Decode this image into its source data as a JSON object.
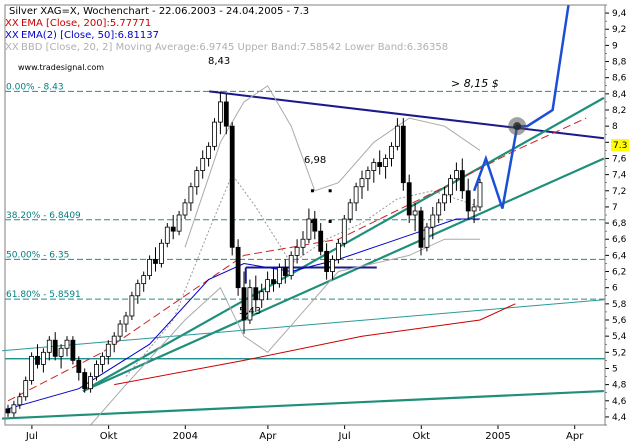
{
  "chart_data": {
    "type": "candlestick",
    "legend": {
      "title": "Silver XAG=X, Wochenchart - 22.06.2003 - 24.04.2005 - 7.3",
      "ema200": "EMA [Close, 200]:5.77771",
      "ema50": "EMA(2) [Close, 50]:6.81137",
      "bbd": "BBD [Close, 20, 2] Moving Average:6.9745 Upper Band:7.58542 Lower Band:6.36358",
      "source": "www.tradesignal.com",
      "xx": "XX"
    },
    "last_value": "7.3",
    "y_axis": {
      "min": 4.3,
      "max": 9.5,
      "ticks": [
        "4,4",
        "4,6",
        "4,8",
        "5",
        "5,2",
        "5,4",
        "5,6",
        "5,8",
        "6",
        "6,2",
        "6,4",
        "6,6",
        "6,8",
        "7",
        "7,2",
        "7,4",
        "7,6",
        "7,8",
        "8",
        "8,2",
        "8,4",
        "8,6",
        "8,8",
        "9",
        "9,2",
        "9,4"
      ]
    },
    "x_axis": {
      "labels": [
        "Jul",
        "Okt",
        "2004",
        "Apr",
        "Jul",
        "Okt",
        "2005",
        "Apr"
      ],
      "label_weeks": [
        1,
        14,
        27,
        41,
        54,
        67,
        80,
        93
      ]
    },
    "fib_levels": [
      {
        "label": "0.00% - 8.43",
        "value": 8.43
      },
      {
        "label": "38.20% - 6.8409",
        "value": 6.8409
      },
      {
        "label": "50.00% - 6.35",
        "value": 6.35
      },
      {
        "label": "61.80% - 5.8591",
        "value": 5.8591
      }
    ],
    "annotations": {
      "peak": "8,43",
      "low": "5,43",
      "mid": "6,98",
      "target": "> 8,15 $"
    },
    "candles": [
      [
        4.5,
        4.55,
        4.4,
        4.45
      ],
      [
        4.45,
        4.6,
        4.4,
        4.55
      ],
      [
        4.55,
        4.7,
        4.5,
        4.65
      ],
      [
        4.65,
        4.9,
        4.6,
        4.85
      ],
      [
        4.85,
        5.2,
        4.8,
        5.15
      ],
      [
        5.15,
        5.3,
        5.0,
        5.05
      ],
      [
        5.05,
        5.25,
        4.95,
        5.2
      ],
      [
        5.2,
        5.4,
        5.1,
        5.35
      ],
      [
        5.35,
        5.45,
        5.1,
        5.15
      ],
      [
        5.15,
        5.3,
        5.0,
        5.25
      ],
      [
        5.25,
        5.4,
        5.15,
        5.35
      ],
      [
        5.35,
        5.4,
        5.05,
        5.1
      ],
      [
        5.1,
        5.15,
        4.85,
        4.95
      ],
      [
        4.95,
        5.0,
        4.7,
        4.75
      ],
      [
        4.75,
        4.95,
        4.7,
        4.9
      ],
      [
        4.9,
        5.1,
        4.85,
        5.05
      ],
      [
        5.05,
        5.2,
        4.95,
        5.15
      ],
      [
        5.15,
        5.35,
        5.05,
        5.3
      ],
      [
        5.3,
        5.45,
        5.2,
        5.4
      ],
      [
        5.4,
        5.6,
        5.35,
        5.55
      ],
      [
        5.55,
        5.7,
        5.45,
        5.65
      ],
      [
        5.65,
        5.95,
        5.6,
        5.9
      ],
      [
        5.9,
        6.1,
        5.8,
        6.05
      ],
      [
        6.05,
        6.2,
        5.95,
        6.15
      ],
      [
        6.15,
        6.4,
        6.1,
        6.35
      ],
      [
        6.35,
        6.5,
        6.2,
        6.3
      ],
      [
        6.3,
        6.6,
        6.25,
        6.55
      ],
      [
        6.55,
        6.8,
        6.5,
        6.75
      ],
      [
        6.75,
        6.9,
        6.6,
        6.7
      ],
      [
        6.7,
        6.95,
        6.65,
        6.9
      ],
      [
        6.9,
        7.1,
        6.85,
        7.05
      ],
      [
        7.05,
        7.3,
        6.95,
        7.25
      ],
      [
        7.25,
        7.5,
        7.15,
        7.45
      ],
      [
        7.45,
        7.7,
        7.35,
        7.6
      ],
      [
        7.6,
        7.8,
        7.5,
        7.75
      ],
      [
        7.75,
        8.1,
        7.7,
        8.05
      ],
      [
        8.05,
        8.43,
        7.9,
        8.3
      ],
      [
        8.3,
        8.4,
        7.9,
        8.0
      ],
      [
        8.0,
        8.05,
        6.4,
        6.5
      ],
      [
        6.5,
        6.6,
        5.9,
        6.0
      ],
      [
        6.0,
        6.2,
        5.43,
        5.6
      ],
      [
        5.6,
        6.1,
        5.55,
        6.0
      ],
      [
        6.0,
        6.15,
        5.7,
        5.85
      ],
      [
        5.85,
        6.05,
        5.75,
        5.95
      ],
      [
        5.95,
        6.2,
        5.85,
        6.1
      ],
      [
        6.1,
        6.25,
        5.95,
        6.05
      ],
      [
        6.05,
        6.3,
        6.0,
        6.25
      ],
      [
        6.25,
        6.35,
        6.05,
        6.15
      ],
      [
        6.15,
        6.45,
        6.1,
        6.4
      ],
      [
        6.4,
        6.6,
        6.3,
        6.5
      ],
      [
        6.5,
        6.7,
        6.4,
        6.6
      ],
      [
        6.6,
        6.98,
        6.55,
        6.85
      ],
      [
        6.85,
        6.95,
        6.6,
        6.7
      ],
      [
        6.7,
        6.8,
        6.4,
        6.45
      ],
      [
        6.45,
        6.55,
        6.1,
        6.2
      ],
      [
        6.2,
        6.4,
        6.1,
        6.35
      ],
      [
        6.35,
        6.6,
        6.3,
        6.55
      ],
      [
        6.55,
        6.9,
        6.5,
        6.85
      ],
      [
        6.85,
        7.1,
        6.8,
        7.05
      ],
      [
        7.05,
        7.3,
        6.95,
        7.25
      ],
      [
        7.25,
        7.45,
        7.1,
        7.35
      ],
      [
        7.35,
        7.5,
        7.2,
        7.45
      ],
      [
        7.45,
        7.6,
        7.3,
        7.55
      ],
      [
        7.55,
        7.7,
        7.4,
        7.5
      ],
      [
        7.5,
        7.65,
        7.35,
        7.6
      ],
      [
        7.6,
        7.8,
        7.5,
        7.75
      ],
      [
        7.75,
        8.1,
        7.7,
        8.0
      ],
      [
        8.0,
        8.1,
        7.2,
        7.3
      ],
      [
        7.3,
        7.4,
        6.8,
        6.9
      ],
      [
        6.9,
        7.05,
        6.7,
        6.95
      ],
      [
        6.95,
        7.0,
        6.4,
        6.5
      ],
      [
        6.5,
        6.8,
        6.45,
        6.75
      ],
      [
        6.75,
        7.0,
        6.6,
        6.9
      ],
      [
        6.9,
        7.1,
        6.8,
        7.05
      ],
      [
        7.05,
        7.25,
        6.95,
        7.15
      ],
      [
        7.15,
        7.4,
        7.05,
        7.35
      ],
      [
        7.35,
        7.55,
        7.2,
        7.45
      ],
      [
        7.45,
        7.6,
        7.1,
        7.2
      ],
      [
        7.2,
        7.35,
        6.85,
        6.95
      ],
      [
        6.95,
        7.1,
        6.8,
        7.0
      ],
      [
        7.0,
        7.35,
        6.95,
        7.3
      ]
    ],
    "ema200_points": [
      [
        18,
        4.8
      ],
      [
        40,
        5.1
      ],
      [
        60,
        5.4
      ],
      [
        80,
        5.6
      ],
      [
        86,
        5.8
      ]
    ],
    "ema50_points": [
      [
        0,
        4.5
      ],
      [
        12,
        4.75
      ],
      [
        24,
        5.3
      ],
      [
        34,
        6.1
      ],
      [
        40,
        6.3
      ],
      [
        48,
        6.2
      ],
      [
        56,
        6.35
      ],
      [
        64,
        6.55
      ],
      [
        70,
        6.7
      ],
      [
        76,
        6.85
      ],
      [
        80,
        6.85
      ]
    ],
    "ema_dashed_points": [
      [
        0,
        4.6
      ],
      [
        16,
        5.2
      ],
      [
        30,
        5.9
      ],
      [
        40,
        6.4
      ],
      [
        56,
        6.6
      ],
      [
        70,
        7.1
      ],
      [
        86,
        7.7
      ],
      [
        98,
        8.1
      ]
    ],
    "bb_upper_points": [
      [
        30,
        6.5
      ],
      [
        36,
        7.8
      ],
      [
        40,
        8.3
      ],
      [
        44,
        8.5
      ],
      [
        48,
        8.0
      ],
      [
        52,
        7.2
      ],
      [
        56,
        7.3
      ],
      [
        62,
        7.8
      ],
      [
        68,
        8.1
      ],
      [
        74,
        8.0
      ],
      [
        80,
        7.7
      ]
    ],
    "bb_lower_points": [
      [
        14,
        4.3
      ],
      [
        20,
        4.8
      ],
      [
        30,
        5.6
      ],
      [
        36,
        6.0
      ],
      [
        40,
        5.4
      ],
      [
        44,
        5.2
      ],
      [
        50,
        5.7
      ],
      [
        56,
        6.2
      ],
      [
        62,
        6.3
      ],
      [
        68,
        6.4
      ],
      [
        74,
        6.6
      ],
      [
        80,
        6.6
      ]
    ],
    "bb_mid_points": [
      [
        20,
        4.9
      ],
      [
        28,
        5.6
      ],
      [
        34,
        6.7
      ],
      [
        38,
        7.4
      ],
      [
        42,
        7.0
      ],
      [
        48,
        6.3
      ],
      [
        54,
        6.6
      ],
      [
        60,
        6.8
      ],
      [
        66,
        7.1
      ],
      [
        72,
        7.2
      ],
      [
        80,
        7.0
      ]
    ]
  }
}
